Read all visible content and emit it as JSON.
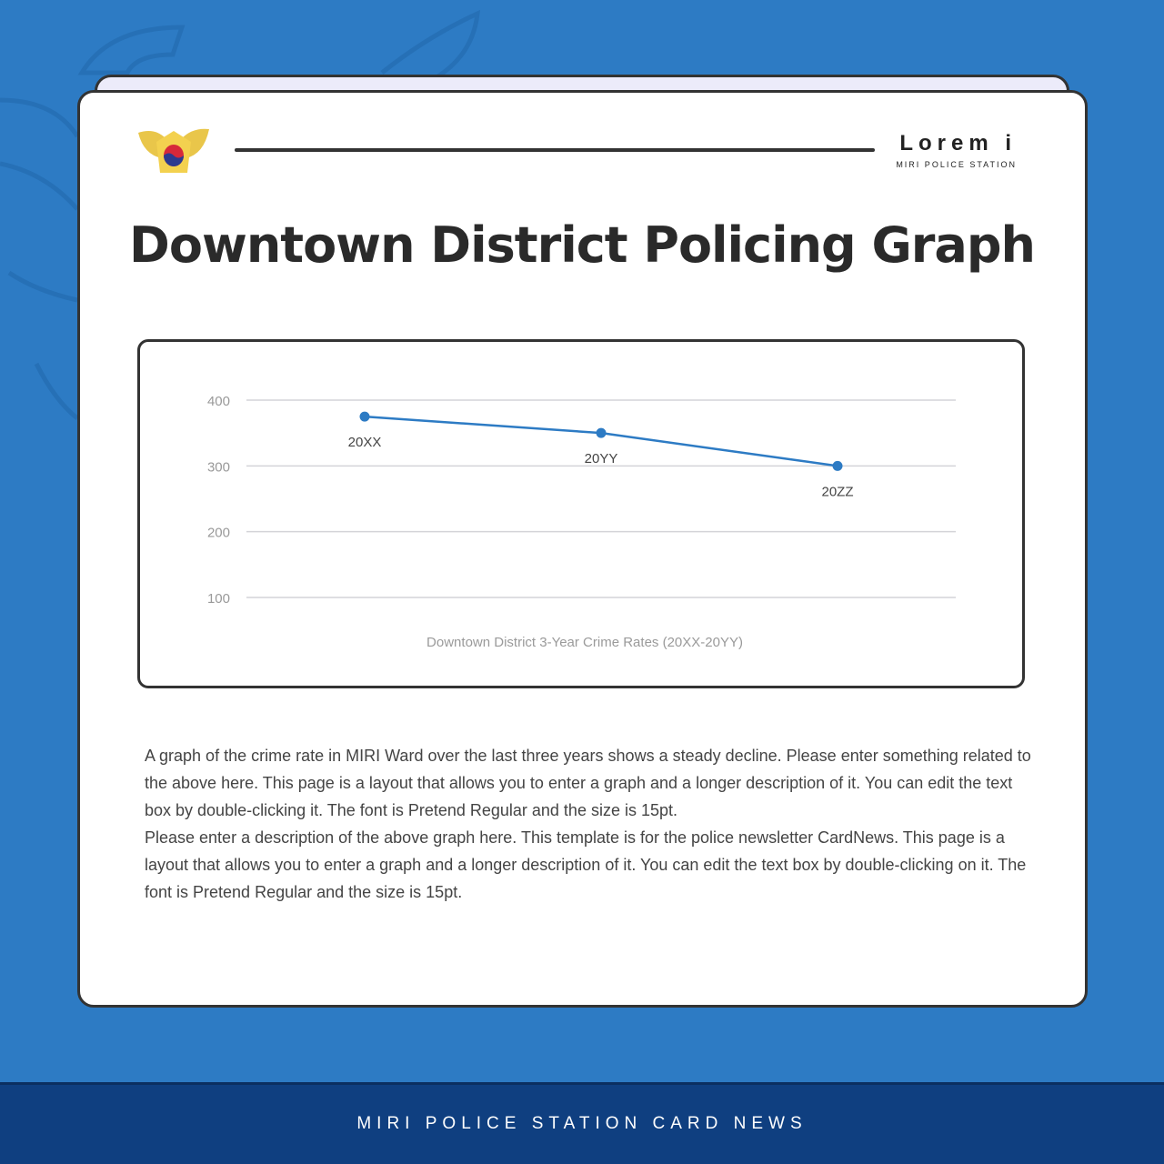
{
  "brand": {
    "title": "Lorem i",
    "subtitle": "MIRI POLICE STATION"
  },
  "page_title": "Downtown District Policing Graph",
  "chart_data": {
    "type": "line",
    "categories": [
      "20XX",
      "20YY",
      "20ZZ"
    ],
    "values": [
      375,
      350,
      300
    ],
    "title": "Downtown District 3-Year Crime Rates (20XX-20YY)",
    "xlabel": "",
    "ylabel": "",
    "yticks": [
      100,
      200,
      300,
      400
    ],
    "ylim": [
      100,
      400
    ],
    "grid": true,
    "line_color": "#2d7bc4"
  },
  "description": [
    "A graph of the crime rate in MIRI Ward over the last three years shows a steady decline. Please enter something related to the above here. This page is a layout that allows you to enter a graph and a longer description of it. You can edit the text box by double-clicking it. The font is Pretend Regular and the size is 15pt.",
    "Please enter a description of the above graph here. This template is for the police newsletter CardNews. This page is a layout that allows you to enter a graph and a longer description of it. You can edit the text box by double-clicking on it. The font is Pretend Regular and the size is 15pt."
  ],
  "footer": "MIRI POLICE STATION CARD NEWS"
}
